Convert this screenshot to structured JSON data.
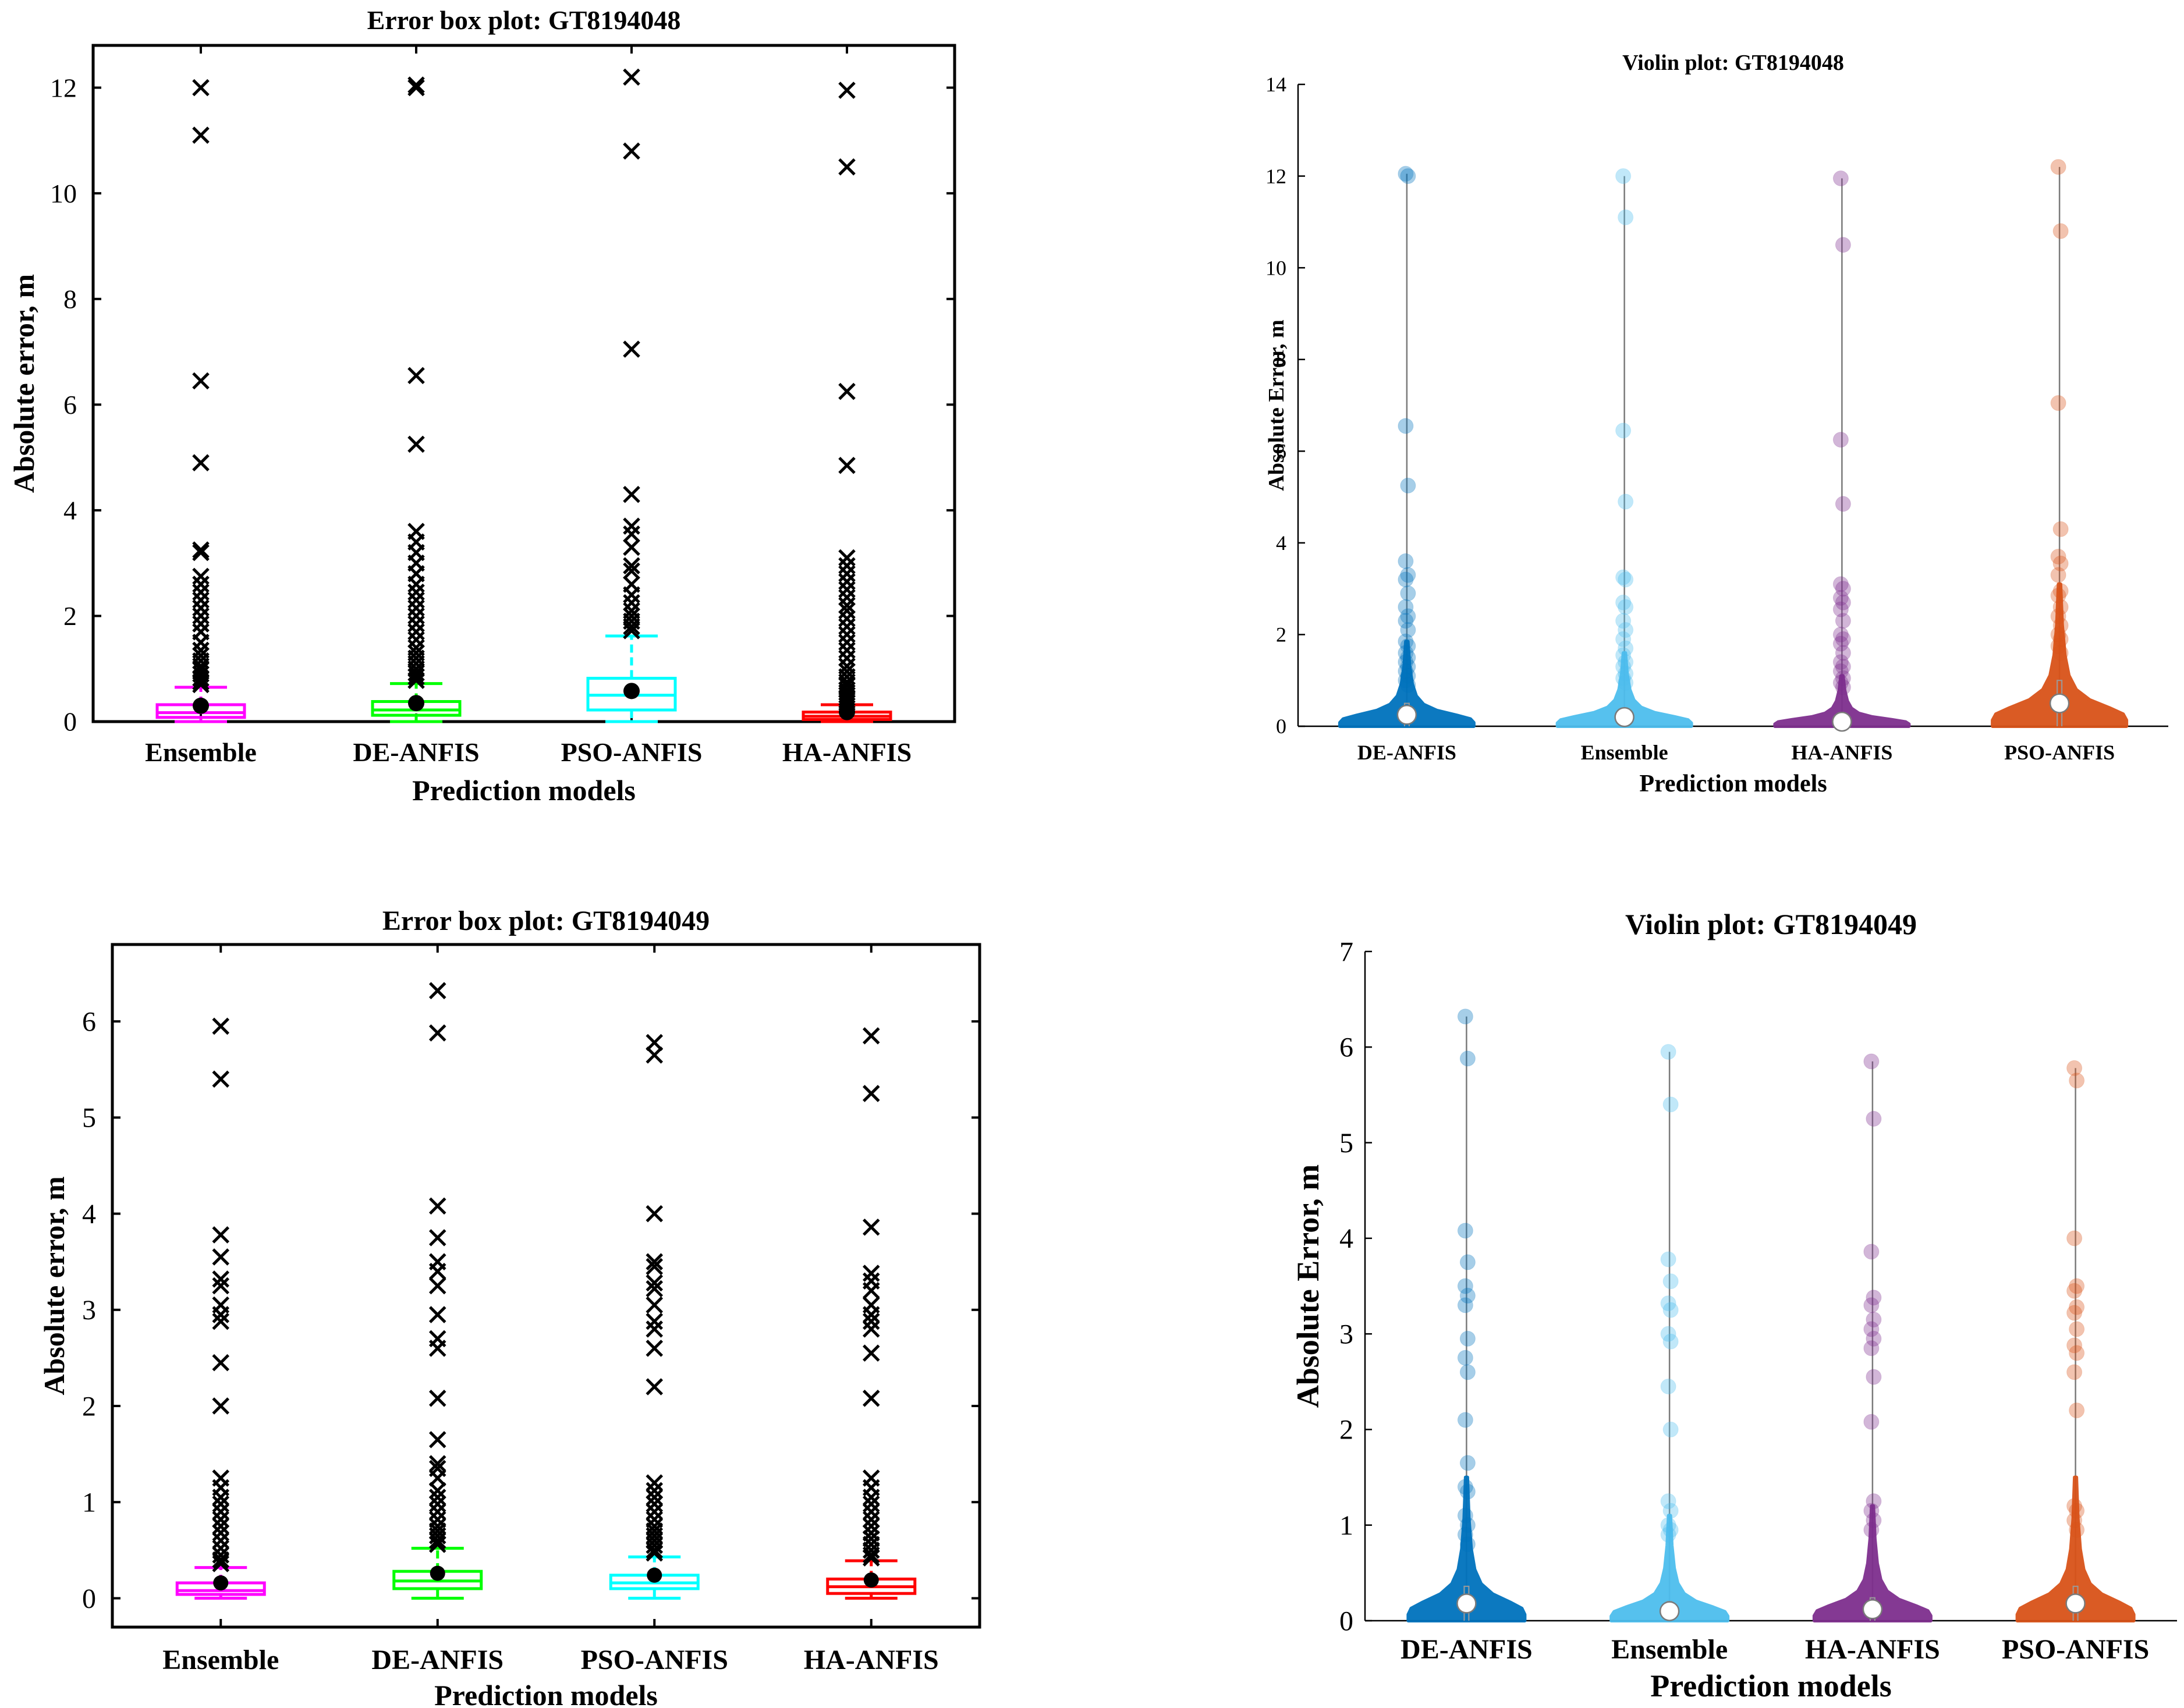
{
  "chart_data": [
    {
      "type": "box",
      "title": "Error box plot: GT8194048",
      "xlabel": "Prediction models",
      "ylabel": "Absolute error, m",
      "ylim": [
        0,
        12.8
      ],
      "yticks": [
        0,
        2,
        4,
        6,
        8,
        10,
        12
      ],
      "ytick_labels": [
        "0",
        "2",
        "4",
        "6",
        "8",
        "10",
        "12"
      ],
      "categories": [
        "Ensemble",
        "DE-ANFIS",
        "PSO-ANFIS",
        "HA-ANFIS"
      ],
      "series": [
        {
          "name": "Ensemble",
          "color": "#ff00ff",
          "q1": 0.08,
          "median": 0.17,
          "q3": 0.32,
          "whisker_low": 0.0,
          "whisker_high": 0.65,
          "mean": 0.3,
          "outliers": [
            12.0,
            11.1,
            6.45,
            4.9,
            3.25,
            3.2,
            2.75,
            2.6,
            2.45,
            2.3,
            2.15,
            2.0,
            1.85,
            1.7,
            1.5,
            1.35,
            1.25,
            1.15,
            1.05,
            0.98,
            0.9,
            0.82,
            0.75,
            0.7
          ]
        },
        {
          "name": "DE-ANFIS",
          "color": "#00ff00",
          "q1": 0.12,
          "median": 0.22,
          "q3": 0.38,
          "whisker_low": 0.0,
          "whisker_high": 0.72,
          "mean": 0.35,
          "outliers": [
            12.05,
            12.0,
            6.55,
            5.25,
            3.6,
            3.4,
            3.2,
            3.0,
            2.8,
            2.6,
            2.45,
            2.3,
            2.15,
            2.0,
            1.85,
            1.7,
            1.55,
            1.4,
            1.3,
            1.2,
            1.1,
            1.0,
            0.92,
            0.85,
            0.78
          ]
        },
        {
          "name": "PSO-ANFIS",
          "color": "#00ffff",
          "q1": 0.22,
          "median": 0.5,
          "q3": 0.82,
          "whisker_low": 0.0,
          "whisker_high": 1.62,
          "mean": 0.58,
          "outliers": [
            12.2,
            10.8,
            7.05,
            4.3,
            3.7,
            3.55,
            3.3,
            2.95,
            2.85,
            2.6,
            2.4,
            2.25,
            2.1,
            2.0,
            1.9,
            1.8,
            1.72
          ]
        },
        {
          "name": "HA-ANFIS",
          "color": "#ff0000",
          "q1": 0.04,
          "median": 0.1,
          "q3": 0.18,
          "whisker_low": 0.0,
          "whisker_high": 0.32,
          "mean": 0.18,
          "outliers": [
            11.95,
            10.5,
            6.25,
            4.85,
            3.1,
            2.95,
            2.8,
            2.65,
            2.5,
            2.35,
            2.2,
            2.1,
            1.95,
            1.8,
            1.65,
            1.5,
            1.35,
            1.2,
            1.05,
            0.95,
            0.85,
            0.75,
            0.68,
            0.6,
            0.55,
            0.5,
            0.45,
            0.4,
            0.36
          ]
        }
      ]
    },
    {
      "type": "violin",
      "title": "Violin plot: GT8194048",
      "xlabel": "Prediction models",
      "ylabel": "Absolute Error, m",
      "ylim": [
        0,
        14
      ],
      "yticks": [
        0,
        2,
        4,
        6,
        8,
        10,
        12,
        14
      ],
      "ytick_labels": [
        "0",
        "2",
        "4",
        "6",
        "8",
        "10",
        "12",
        "14"
      ],
      "categories": [
        "DE-ANFIS",
        "Ensemble",
        "HA-ANFIS",
        "PSO-ANFIS"
      ],
      "series": [
        {
          "name": "DE-ANFIS",
          "color": "#0072bd",
          "median": 0.25,
          "max": 12.05,
          "points": [
            12.05,
            12.0,
            6.55,
            5.25,
            3.6,
            3.3,
            3.2,
            2.9,
            2.6,
            2.4,
            2.3,
            2.1,
            1.85,
            1.75,
            1.6,
            1.5,
            1.4,
            1.3,
            1.2,
            1.1,
            1.0,
            0.9
          ]
        },
        {
          "name": "Ensemble",
          "color": "#4dbeee",
          "median": 0.2,
          "max": 12.0,
          "points": [
            12.0,
            11.1,
            6.45,
            4.9,
            3.25,
            3.2,
            2.7,
            2.6,
            2.3,
            2.1,
            1.9,
            1.7,
            1.55,
            1.4,
            1.3,
            1.15,
            1.05,
            0.95
          ]
        },
        {
          "name": "HA-ANFIS",
          "color": "#7e2f8e",
          "median": 0.1,
          "max": 11.95,
          "points": [
            11.95,
            10.5,
            6.25,
            4.85,
            3.1,
            3.0,
            2.8,
            2.7,
            2.55,
            2.3,
            2.0,
            1.9,
            1.8,
            1.6,
            1.4,
            1.3,
            1.2,
            1.05,
            0.95,
            0.85
          ]
        },
        {
          "name": "PSO-ANFIS",
          "color": "#d95319",
          "median": 0.5,
          "max": 12.2,
          "points": [
            12.2,
            10.8,
            7.05,
            4.3,
            3.7,
            3.55,
            3.3,
            2.95,
            2.85,
            2.6,
            2.4,
            2.2,
            2.0,
            1.9,
            1.75,
            1.6
          ]
        }
      ]
    },
    {
      "type": "box",
      "title": "Error box plot: GT8194049",
      "xlabel": "Prediction models",
      "ylabel": "Absolute error, m",
      "ylim": [
        -0.3,
        6.8
      ],
      "yticks": [
        0,
        1,
        2,
        3,
        4,
        5,
        6
      ],
      "ytick_labels": [
        "0",
        "1",
        "2",
        "3",
        "4",
        "5",
        "6"
      ],
      "categories": [
        "Ensemble",
        "DE-ANFIS",
        "PSO-ANFIS",
        "HA-ANFIS"
      ],
      "series": [
        {
          "name": "Ensemble",
          "color": "#ff00ff",
          "q1": 0.04,
          "median": 0.08,
          "q3": 0.16,
          "whisker_low": 0.0,
          "whisker_high": 0.32,
          "mean": 0.16,
          "outliers": [
            5.95,
            5.4,
            3.78,
            3.55,
            3.32,
            3.25,
            3.05,
            2.95,
            2.88,
            2.45,
            2.0,
            1.25,
            1.15,
            1.05,
            0.98,
            0.9,
            0.82,
            0.75,
            0.68,
            0.6,
            0.52,
            0.45,
            0.4,
            0.36
          ]
        },
        {
          "name": "DE-ANFIS",
          "color": "#00ff00",
          "q1": 0.1,
          "median": 0.18,
          "q3": 0.28,
          "whisker_low": 0.0,
          "whisker_high": 0.52,
          "mean": 0.26,
          "outliers": [
            6.32,
            5.88,
            4.08,
            3.75,
            3.5,
            3.4,
            3.25,
            2.95,
            2.7,
            2.6,
            2.08,
            1.65,
            1.4,
            1.35,
            1.25,
            1.12,
            1.05,
            0.98,
            0.9,
            0.82,
            0.75,
            0.7,
            0.65,
            0.6,
            0.56
          ]
        },
        {
          "name": "PSO-ANFIS",
          "color": "#00ffff",
          "q1": 0.1,
          "median": 0.16,
          "q3": 0.24,
          "whisker_low": 0.0,
          "whisker_high": 0.43,
          "mean": 0.24,
          "outliers": [
            5.78,
            5.65,
            4.0,
            3.5,
            3.45,
            3.28,
            3.22,
            3.05,
            2.88,
            2.8,
            2.6,
            2.2,
            1.2,
            1.12,
            1.05,
            0.98,
            0.9,
            0.82,
            0.75,
            0.7,
            0.65,
            0.6,
            0.55,
            0.5,
            0.47
          ]
        },
        {
          "name": "HA-ANFIS",
          "color": "#ff0000",
          "q1": 0.05,
          "median": 0.12,
          "q3": 0.2,
          "whisker_low": 0.0,
          "whisker_high": 0.39,
          "mean": 0.19,
          "outliers": [
            5.85,
            5.25,
            3.86,
            3.38,
            3.3,
            3.2,
            3.05,
            2.95,
            2.88,
            2.8,
            2.55,
            2.08,
            1.25,
            1.15,
            1.05,
            0.98,
            0.9,
            0.82,
            0.75,
            0.68,
            0.62,
            0.56,
            0.5,
            0.45,
            0.42
          ]
        }
      ]
    },
    {
      "type": "violin",
      "title": "Violin plot: GT8194049",
      "xlabel": "Prediction models",
      "ylabel": "Absolute Error, m",
      "ylim": [
        0,
        7
      ],
      "yticks": [
        0,
        1,
        2,
        3,
        4,
        5,
        6,
        7
      ],
      "ytick_labels": [
        "0",
        "1",
        "2",
        "3",
        "4",
        "5",
        "6",
        "7"
      ],
      "categories": [
        "DE-ANFIS",
        "Ensemble",
        "HA-ANFIS",
        "PSO-ANFIS"
      ],
      "series": [
        {
          "name": "DE-ANFIS",
          "color": "#0072bd",
          "median": 0.18,
          "max": 6.32,
          "points": [
            6.32,
            5.88,
            4.08,
            3.75,
            3.5,
            3.4,
            3.3,
            2.95,
            2.75,
            2.6,
            2.1,
            1.65,
            1.4,
            1.35,
            1.1,
            1.0,
            0.9,
            0.8
          ]
        },
        {
          "name": "Ensemble",
          "color": "#4dbeee",
          "median": 0.1,
          "max": 5.95,
          "points": [
            5.95,
            5.4,
            3.78,
            3.55,
            3.32,
            3.25,
            3.0,
            2.92,
            2.45,
            2.0,
            1.25,
            1.15,
            1.0,
            0.95,
            0.9
          ]
        },
        {
          "name": "HA-ANFIS",
          "color": "#7e2f8e",
          "median": 0.12,
          "max": 5.85,
          "points": [
            5.85,
            5.25,
            3.86,
            3.38,
            3.3,
            3.15,
            3.05,
            2.95,
            2.85,
            2.55,
            2.08,
            1.25,
            1.15,
            1.05,
            0.95
          ]
        },
        {
          "name": "PSO-ANFIS",
          "color": "#d95319",
          "median": 0.18,
          "max": 5.78,
          "points": [
            5.78,
            5.65,
            4.0,
            3.5,
            3.45,
            3.28,
            3.22,
            3.05,
            2.88,
            2.8,
            2.6,
            2.2,
            1.2,
            1.15,
            1.05,
            0.95
          ]
        }
      ]
    }
  ]
}
